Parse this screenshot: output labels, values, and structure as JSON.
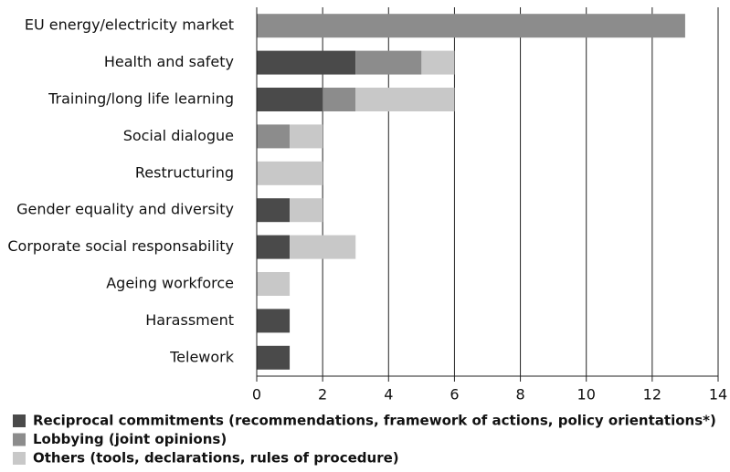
{
  "chart_data": {
    "type": "bar",
    "orientation": "horizontal",
    "stacked": true,
    "categories": [
      "EU energy/electricity market",
      "Health and safety",
      "Training/long life learning",
      "Social dialogue",
      "Restructuring",
      "Gender equality and diversity",
      "Corporate social responsability",
      "Ageing workforce",
      "Harassment",
      "Telework"
    ],
    "series": [
      {
        "name": "Reciprocal commitments (recommendations, framework of actions, policy orientations*)",
        "color": "#4a4a4a",
        "values": [
          0,
          3,
          2,
          0,
          0,
          1,
          1,
          0,
          1,
          1
        ]
      },
      {
        "name": "Lobbying (joint opinions)",
        "color": "#8c8c8c",
        "values": [
          13,
          2,
          1,
          1,
          0,
          0,
          0,
          0,
          0,
          0
        ]
      },
      {
        "name": "Others (tools, declarations, rules of procedure)",
        "color": "#c8c8c8",
        "values": [
          0,
          1,
          3,
          1,
          2,
          1,
          2,
          1,
          0,
          0
        ]
      }
    ],
    "xlim": [
      0,
      14
    ],
    "xticks": [
      0,
      2,
      4,
      6,
      8,
      10,
      12,
      14
    ],
    "grid": true,
    "legend": "bottom"
  }
}
